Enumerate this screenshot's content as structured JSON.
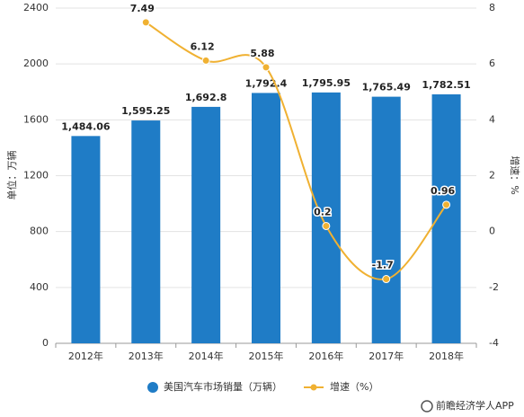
{
  "chart_data": {
    "type": "bar",
    "categories": [
      "2012年",
      "2013年",
      "2014年",
      "2015年",
      "2016年",
      "2017年",
      "2018年"
    ],
    "series": [
      {
        "name": "美国汽车市场销量（万辆）",
        "color": "#1f7cc6",
        "axis": "y",
        "values": [
          1484.06,
          1595.25,
          1692.8,
          1792.4,
          1795.95,
          1765.49,
          1782.51
        ],
        "value_labels": [
          "1,484.06",
          "1,595.25",
          "1,692.8",
          "1,792.4",
          "1,795.95",
          "1,765.49",
          "1,782.51"
        ]
      },
      {
        "name": "增速（%）",
        "type": "line",
        "color": "#f0b132",
        "axis": "y2",
        "values": [
          null,
          7.49,
          6.12,
          5.88,
          0.2,
          -1.7,
          0.96
        ],
        "value_labels": [
          null,
          "7.49",
          "6.12",
          "5.88",
          "0.2",
          "-1.7",
          "0.96"
        ]
      }
    ],
    "ylabel": "单位：万辆",
    "y2label": "增速：%",
    "ylim": [
      0,
      2400
    ],
    "yticks": [
      0,
      400,
      800,
      1200,
      1600,
      2000,
      2400
    ],
    "y2lim": [
      -4,
      8
    ],
    "y2ticks": [
      -4,
      -2,
      0,
      2,
      4,
      6,
      8
    ],
    "grid": true,
    "legend": "bottom"
  },
  "footer": "前瞻经济学人APP"
}
